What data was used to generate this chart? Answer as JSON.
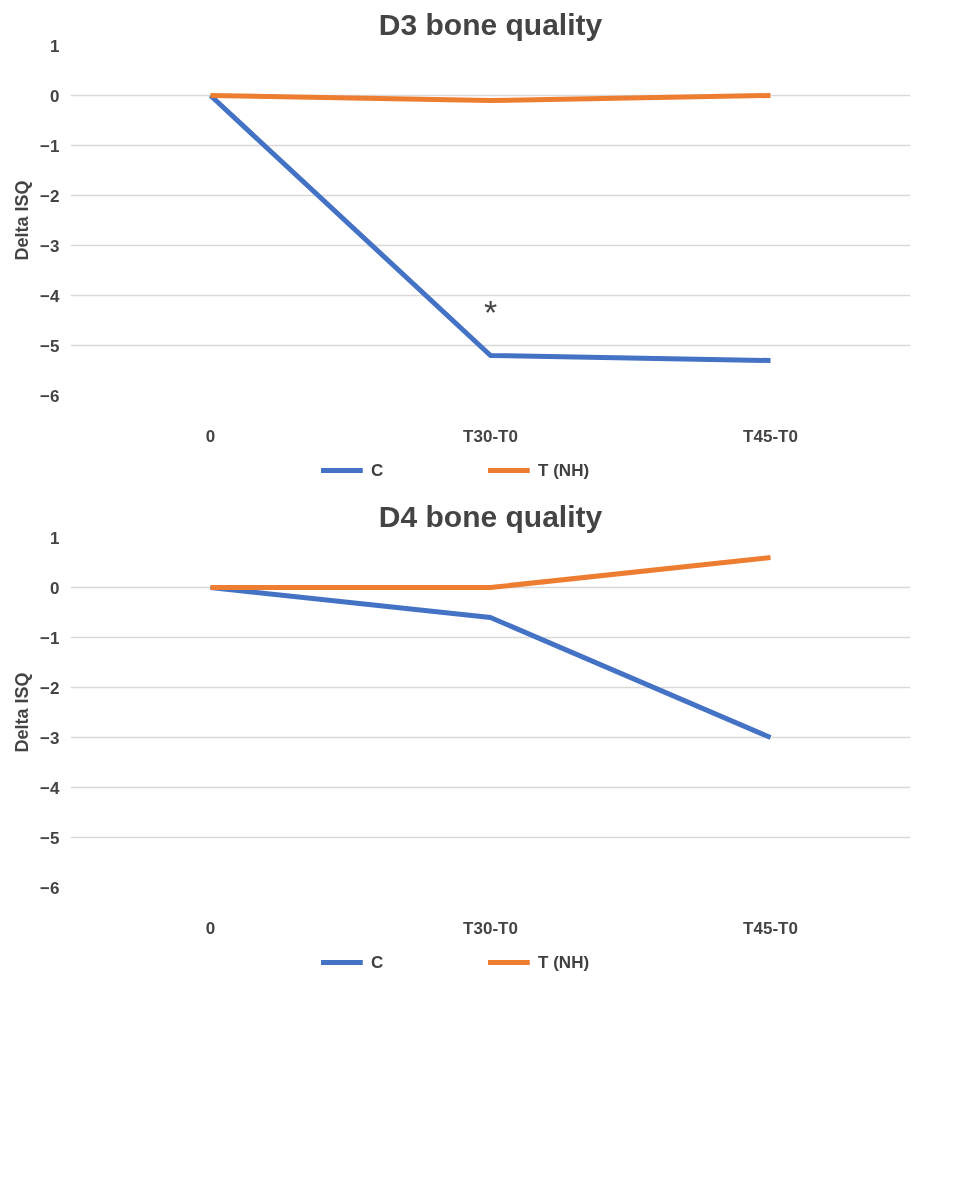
{
  "chart_data": [
    {
      "type": "line",
      "title": "D3 bone quality",
      "ylabel": "Delta ISQ",
      "categories": [
        "0",
        "T30-T0",
        "T45-T0"
      ],
      "series": [
        {
          "name": "C",
          "color": "#4472c4",
          "values": [
            0,
            -5.2,
            -5.3
          ]
        },
        {
          "name": "T (NH)",
          "color": "#ed7d31",
          "values": [
            0,
            -0.1,
            0
          ]
        }
      ],
      "ylim": [
        -6,
        1
      ],
      "yticks": [
        -6,
        -5,
        -4,
        -3,
        -2,
        -1,
        0,
        1
      ],
      "grid": "y",
      "legend": "bottom",
      "marker": "none",
      "line_style": "solid",
      "annotations": [
        "*"
      ]
    },
    {
      "type": "line",
      "title": "D4 bone quality",
      "ylabel": "Delta ISQ",
      "categories": [
        "0",
        "T30-T0",
        "T45-T0"
      ],
      "series": [
        {
          "name": "C",
          "color": "#4472c4",
          "values": [
            0,
            -0.6,
            -3.0
          ]
        },
        {
          "name": "T (NH)",
          "color": "#ed7d31",
          "values": [
            0,
            0,
            0.6
          ]
        }
      ],
      "ylim": [
        -6,
        1
      ],
      "yticks": [
        -6,
        -5,
        -4,
        -3,
        -2,
        -1,
        0,
        1
      ],
      "grid": "y",
      "legend": "bottom",
      "marker": "none",
      "line_style": "solid"
    }
  ]
}
